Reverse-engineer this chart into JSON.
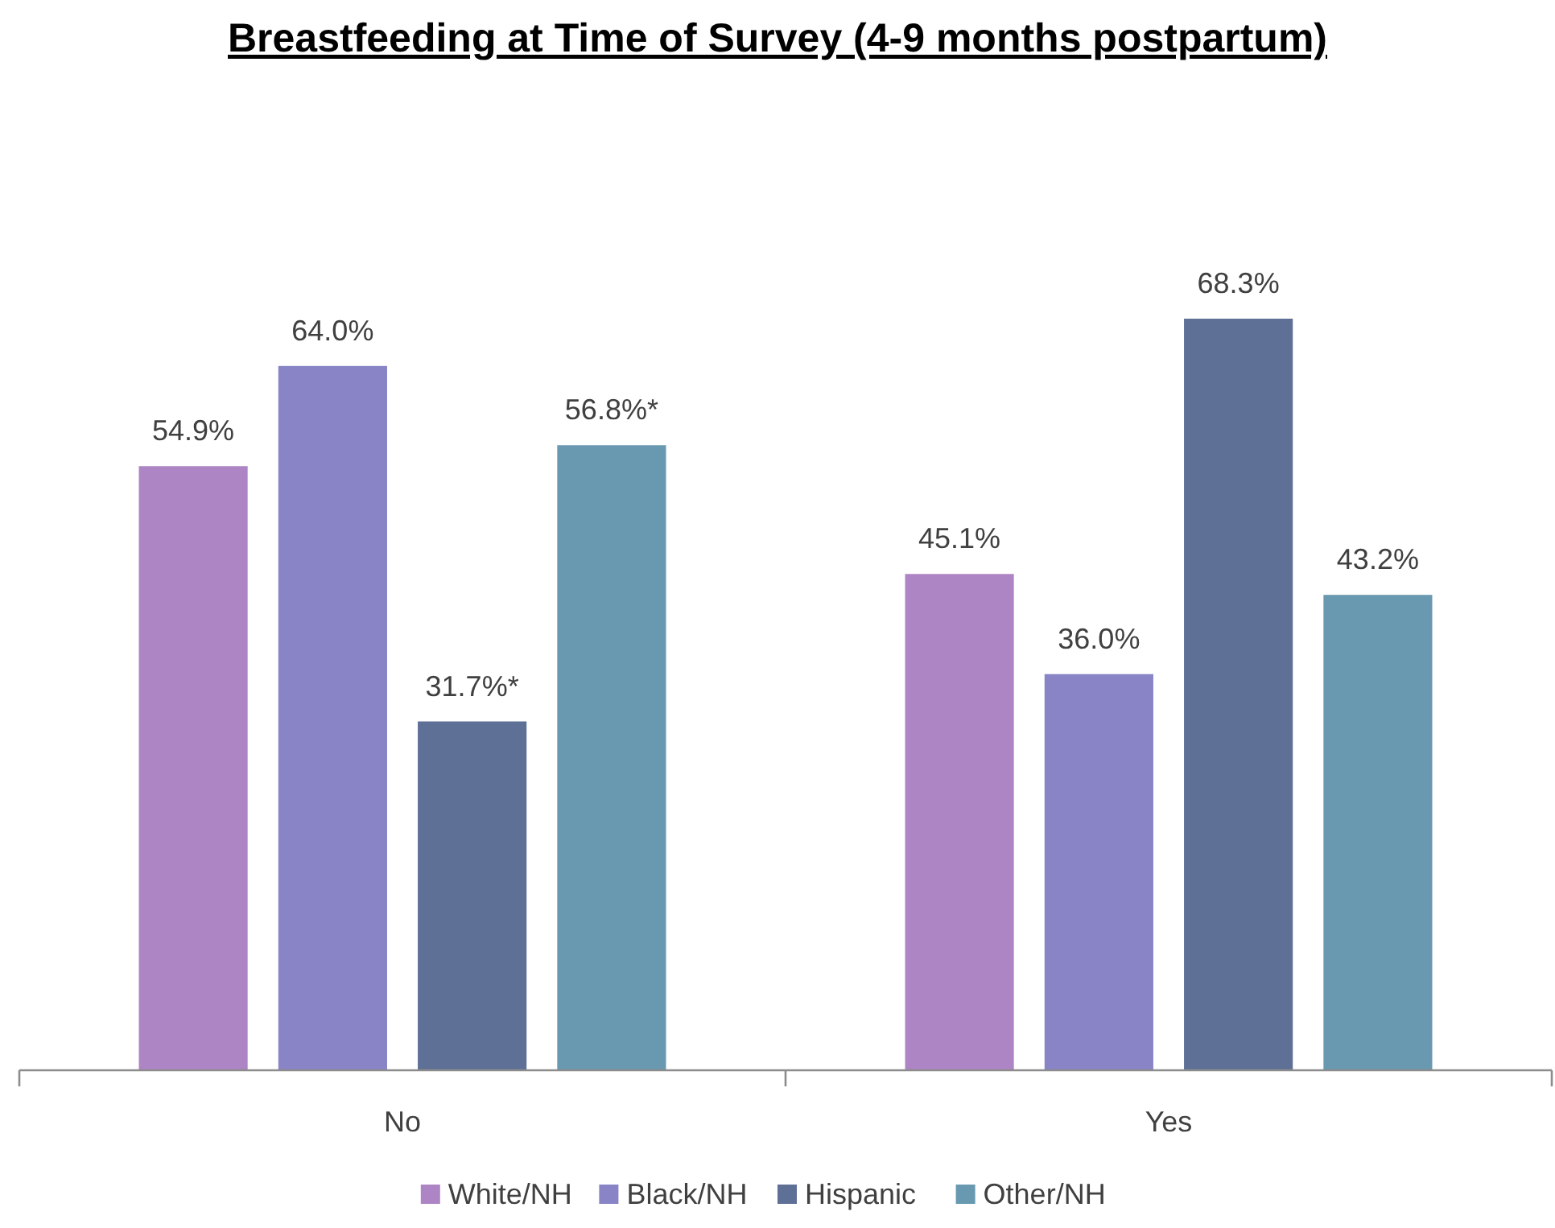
{
  "chart_data": {
    "type": "bar",
    "title": "Breastfeeding at Time of Survey (4-9 months postpartum)",
    "categories": [
      "No",
      "Yes"
    ],
    "series": [
      {
        "name": "White/NH",
        "color": "#ae85c4",
        "values": [
          54.9,
          45.1
        ],
        "value_labels": [
          "54.9%",
          "45.1%"
        ]
      },
      {
        "name": "Black/NH",
        "color": "#8884c6",
        "values": [
          64.0,
          36.0
        ],
        "value_labels": [
          "64.0%",
          "36.0%"
        ]
      },
      {
        "name": "Hispanic",
        "color": "#5e7096",
        "values": [
          31.7,
          68.3
        ],
        "value_labels": [
          "31.7%*",
          "68.3%"
        ]
      },
      {
        "name": "Other/NH",
        "color": "#6899b0",
        "values": [
          56.8,
          43.2
        ],
        "value_labels": [
          "56.8%*",
          "43.2%"
        ]
      }
    ],
    "legend": "bottom"
  }
}
